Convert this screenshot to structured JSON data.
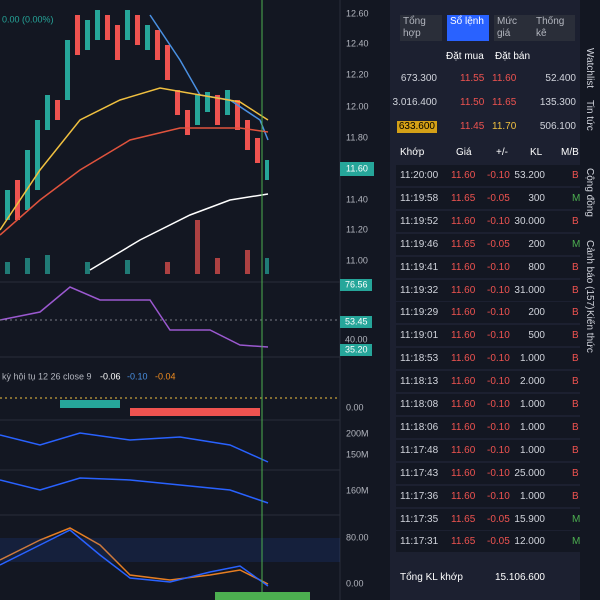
{
  "chart": {
    "status": "0.00 (0.00%)",
    "price_axis": [
      "12.60",
      "12.40",
      "12.20",
      "12.00",
      "11.80",
      "11.40",
      "11.20",
      "11.00"
    ],
    "current_price": "11.60",
    "rsi_labels": [
      "76.56",
      "53.45",
      "40.00",
      "35.20"
    ],
    "indicator_title": "kỳ hội tụ 12 26 close 9",
    "indicator_values": [
      "-0.06",
      "-0.10",
      "-0.04"
    ],
    "lower_axis": [
      "0.00",
      "200M",
      "150M",
      "160M",
      "80.00",
      "0.00"
    ]
  },
  "tabs": [
    "Tổng hợp",
    "Sổ lệnh",
    "Mức giá",
    "Thống kê"
  ],
  "order_book": {
    "headers": [
      "Đặt mua",
      "Đặt bán"
    ],
    "rows": [
      [
        "673.300",
        "11.55",
        "11.60",
        "52.400"
      ],
      [
        "3.016.400",
        "11.50",
        "11.65",
        "135.300"
      ],
      [
        "633.600",
        "11.45",
        "11.70",
        "506.100"
      ]
    ]
  },
  "trades": {
    "headers": [
      "Khớp",
      "Giá",
      "+/-",
      "KL",
      "M/B"
    ],
    "rows": [
      [
        "11:20:00",
        "11.60",
        "-0.10",
        "53.200",
        "B"
      ],
      [
        "11:19:58",
        "11.65",
        "-0.05",
        "300",
        "M"
      ],
      [
        "11:19:52",
        "11.60",
        "-0.10",
        "30.000",
        "B"
      ],
      [
        "11:19:46",
        "11.65",
        "-0.05",
        "200",
        "M"
      ],
      [
        "11:19:41",
        "11.60",
        "-0.10",
        "800",
        "B"
      ],
      [
        "11:19:32",
        "11.60",
        "-0.10",
        "31.000",
        "B"
      ],
      [
        "11:19:29",
        "11.60",
        "-0.10",
        "200",
        "B"
      ],
      [
        "11:19:01",
        "11.60",
        "-0.10",
        "500",
        "B"
      ],
      [
        "11:18:53",
        "11.60",
        "-0.10",
        "1.000",
        "B"
      ],
      [
        "11:18:13",
        "11.60",
        "-0.10",
        "2.000",
        "B"
      ],
      [
        "11:18:08",
        "11.60",
        "-0.10",
        "1.000",
        "B"
      ],
      [
        "11:18:06",
        "11.60",
        "-0.10",
        "1.000",
        "B"
      ],
      [
        "11:17:48",
        "11.60",
        "-0.10",
        "1.000",
        "B"
      ],
      [
        "11:17:43",
        "11.60",
        "-0.10",
        "25.000",
        "B"
      ],
      [
        "11:17:36",
        "11.60",
        "-0.10",
        "1.000",
        "B"
      ],
      [
        "11:17:35",
        "11.65",
        "-0.05",
        "15.900",
        "M"
      ],
      [
        "11:17:31",
        "11.65",
        "-0.05",
        "12.000",
        "M"
      ]
    ]
  },
  "summary": {
    "label": "Tổng KL khớp",
    "value": "15.106.600"
  },
  "sidebar": [
    "Watchlist",
    "Tin tức",
    "Cộng đồng",
    "Cảnh báo (157)",
    "Kiến thức"
  ]
}
